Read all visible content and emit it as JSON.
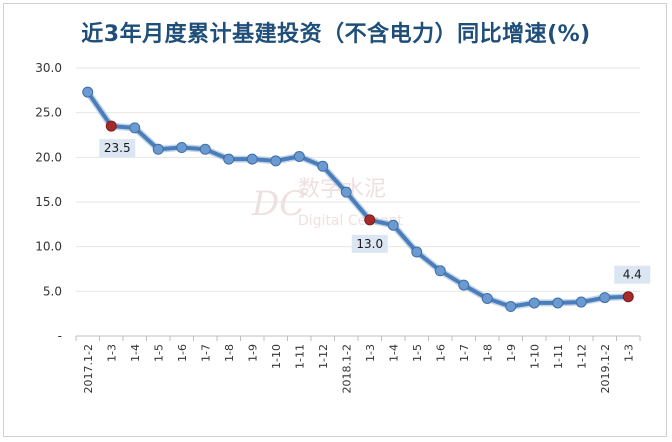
{
  "title": "近3年月度累计基建投资（不含电力）同比增速(%)",
  "watermark": {
    "logo": "DC",
    "cn": "数字水泥",
    "en": "Digital Cement"
  },
  "colors": {
    "line": "#4a7ebb",
    "marker": "#6a9ad0",
    "highlight": "#a52a2a",
    "label_bg": "#dce6f2",
    "grid": "#e6e6e6"
  },
  "chart_data": {
    "type": "line",
    "title": "近3年月度累计基建投资（不含电力）同比增速(%)",
    "xlabel": "",
    "ylabel": "",
    "ylim": [
      0,
      30
    ],
    "yticks": [
      "-",
      "5.0",
      "10.0",
      "15.0",
      "20.0",
      "25.0",
      "30.0"
    ],
    "grid": true,
    "categories": [
      "2017.1-2",
      "1-3",
      "1-4",
      "1-5",
      "1-6",
      "1-7",
      "1-8",
      "1-9",
      "1-10",
      "1-11",
      "1-12",
      "2018.1-2",
      "1-3",
      "1-4",
      "1-5",
      "1-6",
      "1-7",
      "1-8",
      "1-9",
      "1-10",
      "1-11",
      "1-12",
      "2019.1-2",
      "1-3"
    ],
    "series": [
      {
        "values": [
          27.3,
          23.5,
          23.3,
          20.9,
          21.1,
          20.9,
          19.8,
          19.8,
          19.6,
          20.1,
          19.0,
          16.1,
          13.0,
          12.4,
          9.4,
          7.3,
          5.7,
          4.2,
          3.3,
          3.7,
          3.7,
          3.8,
          4.3,
          4.4
        ]
      }
    ],
    "labeled_points": [
      {
        "index": 1,
        "label": "23.5"
      },
      {
        "index": 12,
        "label": "13.0"
      },
      {
        "index": 23,
        "label": "4.4"
      }
    ]
  }
}
